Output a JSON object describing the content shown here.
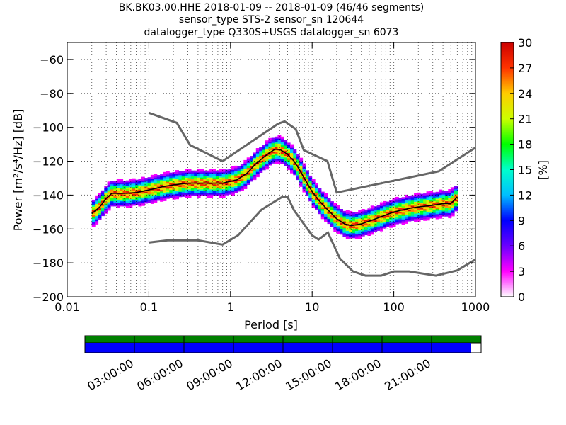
{
  "titles": {
    "line1": "BK.BK03.00.HHE   2018-01-09 -- 2018-01-09  (46/46 segments)",
    "line2": "sensor_type STS-2 sensor_sn 120644",
    "line3": "datalogger_type Q330S+USGS datalogger_sn 6073"
  },
  "chart_data": [
    {
      "type": "heatmap",
      "xlabel": "Period [s]",
      "ylabel": "Power [m²/s⁴/Hz] [dB]",
      "xscale": "log",
      "xlim": [
        0.01,
        1000
      ],
      "ylim": [
        -200,
        -50
      ],
      "x_ticks": [
        {
          "v": 0.01,
          "label": "0.01"
        },
        {
          "v": 0.1,
          "label": "0.1"
        },
        {
          "v": 1,
          "label": "1"
        },
        {
          "v": 10,
          "label": "10"
        },
        {
          "v": 100,
          "label": "100"
        },
        {
          "v": 1000,
          "label": "1000"
        }
      ],
      "y_ticks": [
        {
          "v": -60,
          "label": "−60"
        },
        {
          "v": -80,
          "label": "−80"
        },
        {
          "v": -100,
          "label": "−100"
        },
        {
          "v": -120,
          "label": "−120"
        },
        {
          "v": -140,
          "label": "−140"
        },
        {
          "v": -160,
          "label": "−160"
        },
        {
          "v": -180,
          "label": "−180"
        },
        {
          "v": -200,
          "label": "−200"
        }
      ],
      "grid": true,
      "colorbar": {
        "label": "[%]",
        "min": 0,
        "max": 30,
        "ticks": [
          "0",
          "3",
          "6",
          "9",
          "12",
          "15",
          "18",
          "21",
          "24",
          "27",
          "30"
        ],
        "colormap": [
          "#ffffff",
          "#ff00ff",
          "#6a00ff",
          "#0000ff",
          "#00bfff",
          "#00ffcc",
          "#00ff00",
          "#ccff00",
          "#ffcc00",
          "#ff3300",
          "#cc0000"
        ]
      },
      "nhnm": [
        [
          0.1,
          -91.5
        ],
        [
          0.22,
          -97.4
        ],
        [
          0.32,
          -110.5
        ],
        [
          0.8,
          -120
        ],
        [
          3.8,
          -98
        ],
        [
          4.6,
          -96.5
        ],
        [
          6.3,
          -101
        ],
        [
          7.9,
          -113.5
        ],
        [
          15.4,
          -120
        ],
        [
          20,
          -138.5
        ],
        [
          354.8,
          -126
        ],
        [
          1000,
          -112
        ]
      ],
      "nlnm": [
        [
          0.1,
          -168
        ],
        [
          0.17,
          -166.7
        ],
        [
          0.4,
          -166.7
        ],
        [
          0.8,
          -169.2
        ],
        [
          1.24,
          -163.7
        ],
        [
          2.4,
          -148.6
        ],
        [
          4.3,
          -141.1
        ],
        [
          5,
          -141.1
        ],
        [
          6,
          -149
        ],
        [
          10,
          -163.8
        ],
        [
          12,
          -166.2
        ],
        [
          15.6,
          -162.1
        ],
        [
          21.9,
          -177.5
        ],
        [
          31.6,
          -185
        ],
        [
          45,
          -187.5
        ],
        [
          70,
          -187.5
        ],
        [
          101,
          -185
        ],
        [
          154,
          -185
        ],
        [
          328,
          -187.5
        ],
        [
          600,
          -184.4
        ],
        [
          1000,
          -178
        ]
      ],
      "mode_curve": [
        [
          0.02,
          -151
        ],
        [
          0.025,
          -147
        ],
        [
          0.03,
          -142
        ],
        [
          0.035,
          -139
        ],
        [
          0.05,
          -139
        ],
        [
          0.07,
          -138.5
        ],
        [
          0.1,
          -137
        ],
        [
          0.15,
          -135
        ],
        [
          0.2,
          -134
        ],
        [
          0.3,
          -133
        ],
        [
          0.5,
          -133
        ],
        [
          0.8,
          -133
        ],
        [
          1.2,
          -131
        ],
        [
          1.6,
          -127
        ],
        [
          2,
          -122
        ],
        [
          2.5,
          -118
        ],
        [
          3,
          -115
        ],
        [
          3.5,
          -113
        ],
        [
          4,
          -113
        ],
        [
          5,
          -116
        ],
        [
          6,
          -120
        ],
        [
          7,
          -125
        ],
        [
          8,
          -130
        ],
        [
          10,
          -138
        ],
        [
          12,
          -143
        ],
        [
          15,
          -148
        ],
        [
          20,
          -154
        ],
        [
          25,
          -157
        ],
        [
          30,
          -158
        ],
        [
          40,
          -157
        ],
        [
          60,
          -154
        ],
        [
          100,
          -150
        ],
        [
          150,
          -148
        ],
        [
          200,
          -147
        ],
        [
          300,
          -146
        ],
        [
          400,
          -145
        ],
        [
          500,
          -145
        ],
        [
          600,
          -141
        ]
      ],
      "psd_band": {
        "spread_db": 8,
        "intensity_peak_pct": 30
      }
    },
    {
      "type": "timeline",
      "ticks": [
        "03:00:00",
        "06:00:00",
        "09:00:00",
        "12:00:00",
        "15:00:00",
        "18:00:00",
        "21:00:00"
      ],
      "coverage_fraction": 0.975,
      "colors": {
        "top": "#008000",
        "bottom": "#0000ff"
      }
    }
  ]
}
